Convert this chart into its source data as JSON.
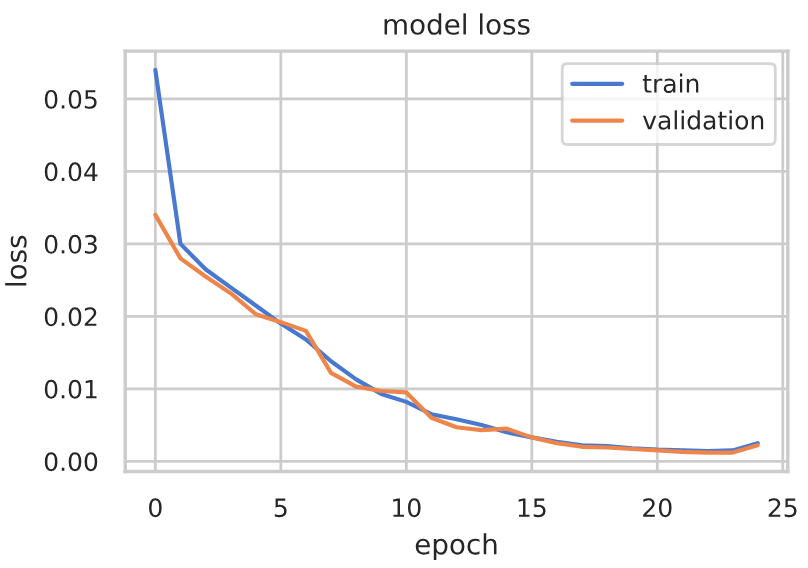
{
  "chart_data": {
    "type": "line",
    "title": "model loss",
    "xlabel": "epoch",
    "ylabel": "loss",
    "x": [
      0,
      1,
      2,
      3,
      4,
      5,
      6,
      7,
      8,
      9,
      10,
      11,
      12,
      13,
      14,
      15,
      16,
      17,
      18,
      19,
      20,
      21,
      22,
      23,
      24
    ],
    "series": [
      {
        "name": "train",
        "color": "#4878d0",
        "values": [
          0.054,
          0.03,
          0.0265,
          0.024,
          0.0215,
          0.019,
          0.0168,
          0.0138,
          0.0113,
          0.0093,
          0.0082,
          0.0065,
          0.0058,
          0.005,
          0.004,
          0.0033,
          0.0027,
          0.0022,
          0.0021,
          0.0018,
          0.0016,
          0.0015,
          0.0014,
          0.0015,
          0.0025
        ]
      },
      {
        "name": "validation",
        "color": "#ee854a",
        "values": [
          0.034,
          0.028,
          0.0255,
          0.0232,
          0.0203,
          0.0192,
          0.018,
          0.0122,
          0.0103,
          0.0097,
          0.0095,
          0.006,
          0.0047,
          0.0043,
          0.0045,
          0.0033,
          0.0025,
          0.002,
          0.0019,
          0.0017,
          0.0015,
          0.0013,
          0.0012,
          0.0012,
          0.0022
        ]
      }
    ],
    "xlim": [
      -1.2,
      25.2
    ],
    "xticks": [
      0,
      5,
      10,
      15,
      20,
      25
    ],
    "ylim": [
      -0.0014,
      0.0566
    ],
    "yticks": [
      {
        "value": 0,
        "label": "0.00"
      },
      {
        "value": 0.01,
        "label": "0.01"
      },
      {
        "value": 0.02,
        "label": "0.02"
      },
      {
        "value": 0.03,
        "label": "0.03"
      },
      {
        "value": 0.04,
        "label": "0.04"
      },
      {
        "value": 0.05,
        "label": "0.05"
      }
    ],
    "grid": true,
    "legend": "top right",
    "marker": "none",
    "line_style": "solid"
  }
}
